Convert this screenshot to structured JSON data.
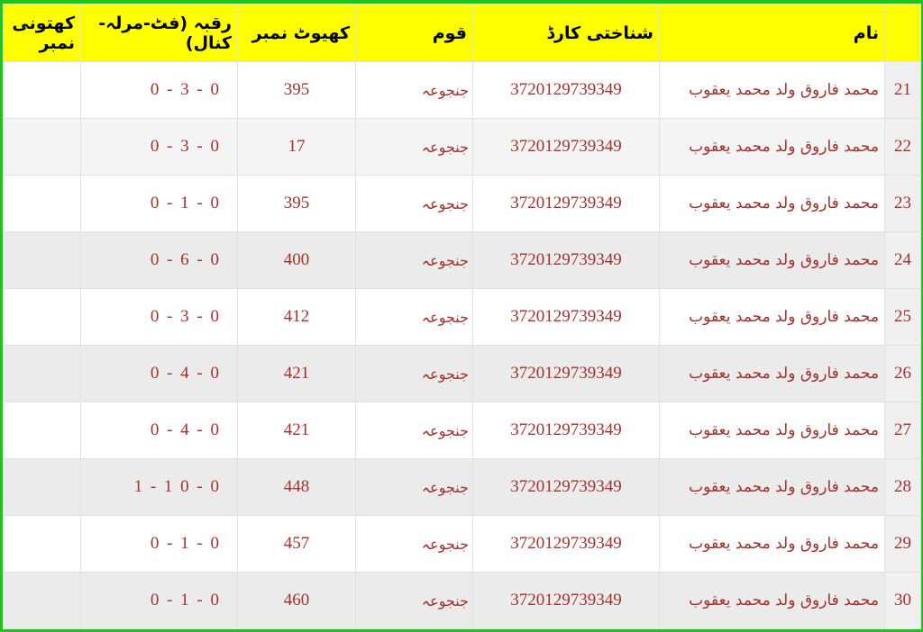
{
  "headers": {
    "khatooni": "کھتونی نمبر",
    "raqba": "رقبہ (فٹ-مرلہ-کنال)",
    "khewat": "کھیوٹ نمبر",
    "qaum": "قوم",
    "card": "شناختی کارڈ",
    "name": "نام"
  },
  "colors": {
    "header_bg": "#ffff00",
    "text": "#a0322d",
    "border": "#1ec41e"
  },
  "rows": [
    {
      "serial": "21",
      "name": "محمد فاروق ولد محمد یعقوب",
      "card": "3720129739349",
      "qaum": "جنجوعہ",
      "khewat": "395",
      "raqba": "0 - 3 - 0",
      "khatooni": ""
    },
    {
      "serial": "22",
      "name": "محمد فاروق ولد محمد یعقوب",
      "card": "3720129739349",
      "qaum": "جنجوعہ",
      "khewat": "17",
      "raqba": "0 - 3 - 0",
      "khatooni": ""
    },
    {
      "serial": "23",
      "name": "محمد فاروق ولد محمد یعقوب",
      "card": "3720129739349",
      "qaum": "جنجوعہ",
      "khewat": "395",
      "raqba": "0 - 1 - 0",
      "khatooni": ""
    },
    {
      "serial": "24",
      "name": "محمد فاروق ولد محمد یعقوب",
      "card": "3720129739349",
      "qaum": "جنجوعہ",
      "khewat": "400",
      "raqba": "0 - 6 - 0",
      "khatooni": ""
    },
    {
      "serial": "25",
      "name": "محمد فاروق ولد محمد یعقوب",
      "card": "3720129739349",
      "qaum": "جنجوعہ",
      "khewat": "412",
      "raqba": "0 - 3 - 0",
      "khatooni": ""
    },
    {
      "serial": "26",
      "name": "محمد فاروق ولد محمد یعقوب",
      "card": "3720129739349",
      "qaum": "جنجوعہ",
      "khewat": "421",
      "raqba": "0 - 4 - 0",
      "khatooni": ""
    },
    {
      "serial": "27",
      "name": "محمد فاروق ولد محمد یعقوب",
      "card": "3720129739349",
      "qaum": "جنجوعہ",
      "khewat": "421",
      "raqba": "0 - 4 - 0",
      "khatooni": ""
    },
    {
      "serial": "28",
      "name": "محمد فاروق ولد محمد یعقوب",
      "card": "3720129739349",
      "qaum": "جنجوعہ",
      "khewat": "448",
      "raqba": "1 - 1 0 - 0",
      "khatooni": ""
    },
    {
      "serial": "29",
      "name": "محمد فاروق ولد محمد یعقوب",
      "card": "3720129739349",
      "qaum": "جنجوعہ",
      "khewat": "457",
      "raqba": "0 - 1 - 0",
      "khatooni": ""
    },
    {
      "serial": "30",
      "name": "محمد فاروق ولد محمد یعقوب",
      "card": "3720129739349",
      "qaum": "جنجوعہ",
      "khewat": "460",
      "raqba": "0 - 1 - 0",
      "khatooni": ""
    }
  ]
}
